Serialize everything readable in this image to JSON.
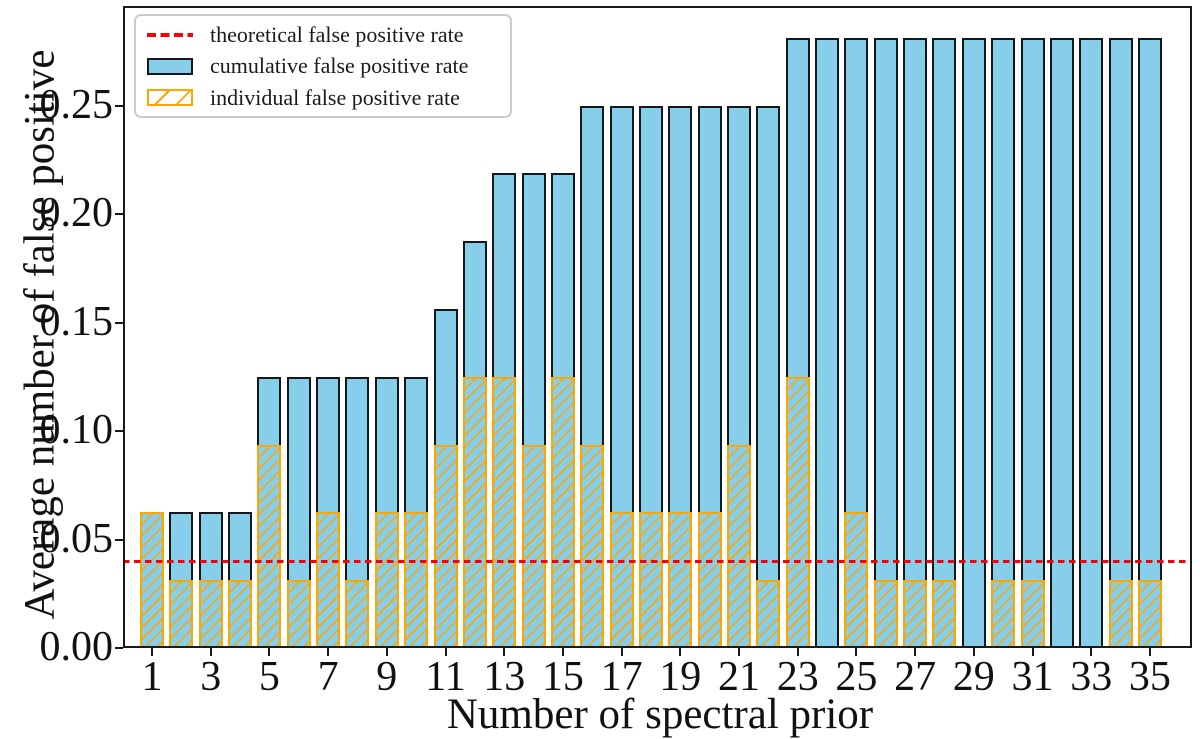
{
  "chart_data": {
    "type": "bar",
    "title": "",
    "xlabel": "Number of spectral prior",
    "ylabel": "Average number of false positive",
    "x": [
      1,
      2,
      3,
      4,
      5,
      6,
      7,
      8,
      9,
      10,
      11,
      12,
      13,
      14,
      15,
      16,
      17,
      18,
      19,
      20,
      21,
      22,
      23,
      24,
      25,
      26,
      27,
      28,
      29,
      30,
      31,
      32,
      33,
      34,
      35
    ],
    "series": [
      {
        "name": "cumulative false positive rate",
        "style": "filled",
        "fill_color": "#87CEEB",
        "edge_color": "#14181c",
        "values": [
          0.0625,
          0.0625,
          0.0625,
          0.0625,
          0.125,
          0.125,
          0.125,
          0.125,
          0.125,
          0.125,
          0.15625,
          0.1875,
          0.21875,
          0.21875,
          0.21875,
          0.25,
          0.25,
          0.25,
          0.25,
          0.25,
          0.25,
          0.25,
          0.28125,
          0.28125,
          0.28125,
          0.28125,
          0.28125,
          0.28125,
          0.28125,
          0.28125,
          0.28125,
          0.28125,
          0.28125,
          0.28125,
          0.28125
        ]
      },
      {
        "name": "individual false positive rate",
        "style": "hatched",
        "hatch": "/",
        "edge_color": "#FFA500",
        "values": [
          0.0625,
          0.03125,
          0.03125,
          0.03125,
          0.09375,
          0.03125,
          0.0625,
          0.03125,
          0.0625,
          0.0625,
          0.09375,
          0.125,
          0.125,
          0.09375,
          0.125,
          0.09375,
          0.0625,
          0.0625,
          0.0625,
          0.0625,
          0.09375,
          0.03125,
          0.125,
          0,
          0.0625,
          0.03125,
          0.03125,
          0.03125,
          0,
          0.03125,
          0.03125,
          0,
          0,
          0.03125,
          0.03125
        ]
      }
    ],
    "theoretical_false_positive_rate": 0.04,
    "theoretical_line_color": "#f80007",
    "theoretical_line_style": "dashed",
    "ylim": [
      0,
      0.2955
    ],
    "yticks": [
      0,
      0.05,
      0.1,
      0.15,
      0.2,
      0.25
    ],
    "ytick_labels": [
      "0.00",
      "0.05",
      "0.10",
      "0.15",
      "0.20",
      "0.25"
    ],
    "xticks": [
      1,
      3,
      5,
      7,
      9,
      11,
      13,
      15,
      17,
      19,
      21,
      23,
      25,
      27,
      29,
      31,
      33,
      35
    ],
    "legend_position": "upper left",
    "grid": false
  },
  "legend": {
    "theoretical": "theoretical false positive rate",
    "cumulative": "cumulative false positive rate",
    "individual": "individual false positive rate"
  },
  "colors": {
    "bar_fill": "#87CEEB",
    "bar_edge": "#14181c",
    "hatch_orange": "#FFA500",
    "line_red": "#f80007",
    "text": "#111111"
  }
}
